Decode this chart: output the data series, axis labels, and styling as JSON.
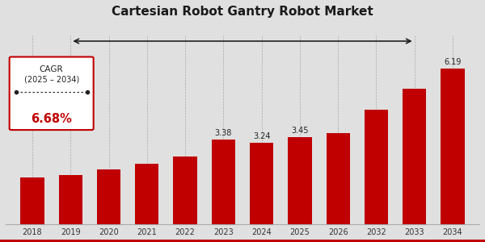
{
  "title": "Cartesian Robot Gantry Robot Market",
  "categories": [
    "2018",
    "2019",
    "2020",
    "2021",
    "2022",
    "2023",
    "2024",
    "2025",
    "2026",
    "2032",
    "2033",
    "2034"
  ],
  "values": [
    1.85,
    1.97,
    2.18,
    2.42,
    2.68,
    3.38,
    3.24,
    3.45,
    3.62,
    4.55,
    5.4,
    6.19
  ],
  "bar_color": "#c00000",
  "background_color": "#e0e0e0",
  "title_color": "#1a1a1a",
  "label_values": [
    null,
    null,
    null,
    null,
    null,
    "3.38",
    "3.24",
    "3.45",
    null,
    null,
    null,
    "6.19"
  ],
  "cagr_text_line1": "CAGR",
  "cagr_text_line2": "(2025 – 2034)",
  "cagr_value": "6.68%",
  "ylim": [
    0,
    7.5
  ],
  "bar_width": 0.62
}
